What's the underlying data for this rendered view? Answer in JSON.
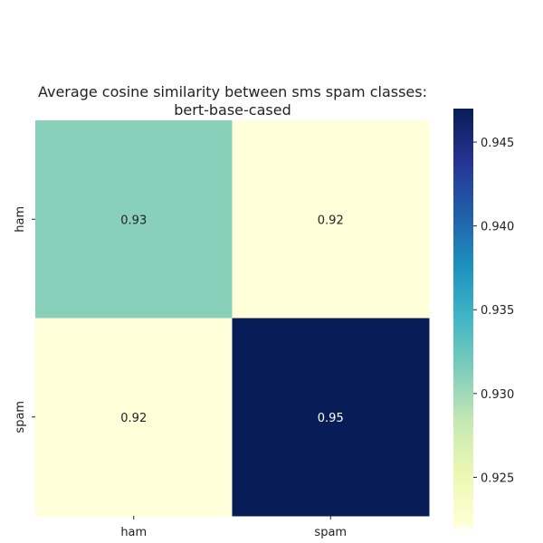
{
  "chart_data": {
    "type": "heatmap",
    "title_lines": [
      "Average cosine similarity between sms spam classes:",
      "bert-base-cased"
    ],
    "row_labels": [
      "ham",
      "spam"
    ],
    "col_labels": [
      "ham",
      "spam"
    ],
    "values": [
      [
        0.931,
        0.9215
      ],
      [
        0.9215,
        0.947
      ]
    ],
    "cell_labels": [
      [
        "0.93",
        "0.92"
      ],
      [
        "0.92",
        "0.95"
      ]
    ],
    "colormap": "YlGnBu",
    "colorbar": {
      "vmin": 0.922,
      "vmax": 0.947,
      "ticks": [
        0.925,
        0.93,
        0.935,
        0.94,
        0.945
      ],
      "tick_labels": [
        "0.925",
        "0.930",
        "0.935",
        "0.940",
        "0.945"
      ]
    },
    "grid": false
  }
}
